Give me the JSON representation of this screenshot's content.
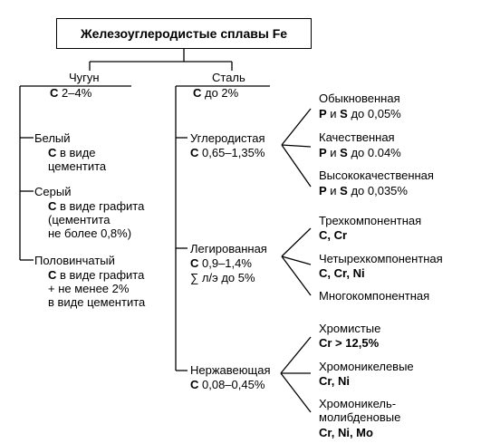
{
  "title": "Железоуглеродистые сплавы Fe",
  "cast_iron": {
    "heading": "Чугун",
    "carbon": {
      "symbol": "C",
      "value": " 2–4%"
    },
    "types": [
      {
        "name": "Белый",
        "sym": "C",
        "lines": [
          " в виде",
          "цементита"
        ]
      },
      {
        "name": "Серый",
        "sym": "C",
        "lines": [
          " в виде графита",
          "(цементита",
          "не более 0,8%)"
        ]
      },
      {
        "name": "Половинчатый",
        "sym": "C",
        "lines": [
          " в виде графита",
          "+ не менее 2%",
          "в виде цементита"
        ]
      }
    ]
  },
  "steel": {
    "heading": "Сталь",
    "carbon": {
      "symbol": "C",
      "value": " до 2%"
    },
    "carbon_steel": {
      "name": "Углеродистая",
      "sym": "C",
      "value": " 0,65–1,35%",
      "grades": [
        {
          "name": "Обыкновенная",
          "p": "P",
          "and": " и ",
          "s": "S",
          "value": " до 0,05%"
        },
        {
          "name": "Качественная",
          "p": "P",
          "and": " и ",
          "s": "S",
          "value": " до 0.04%"
        },
        {
          "name": "Высококачественная",
          "p": "P",
          "and": " и ",
          "s": "S",
          "value": " до 0,035%"
        }
      ]
    },
    "alloy_steel": {
      "name": "Легированная",
      "sym": "C",
      "value": " 0,9–1,4%",
      "sum": "∑ л/э до 5%",
      "grades": [
        {
          "name": "Трехкомпонентная",
          "elements": "C, Cr"
        },
        {
          "name": "Четырехкомпонентная",
          "elements": "C, Cr, Ni"
        },
        {
          "name": "Многокомпонентная",
          "elements": ""
        }
      ]
    },
    "stainless_steel": {
      "name": "Нержавеющая",
      "sym": "C",
      "value": " 0,08–0,45%",
      "grades": [
        {
          "name": "Хромистые",
          "elements": "Cr > 12,5%"
        },
        {
          "name": "Хромоникелевые",
          "elements": "Cr, Ni"
        },
        {
          "name": "Хромоникель-",
          "name2": "молибденовые",
          "elements": "Cr, Ni, Mo"
        }
      ]
    }
  }
}
